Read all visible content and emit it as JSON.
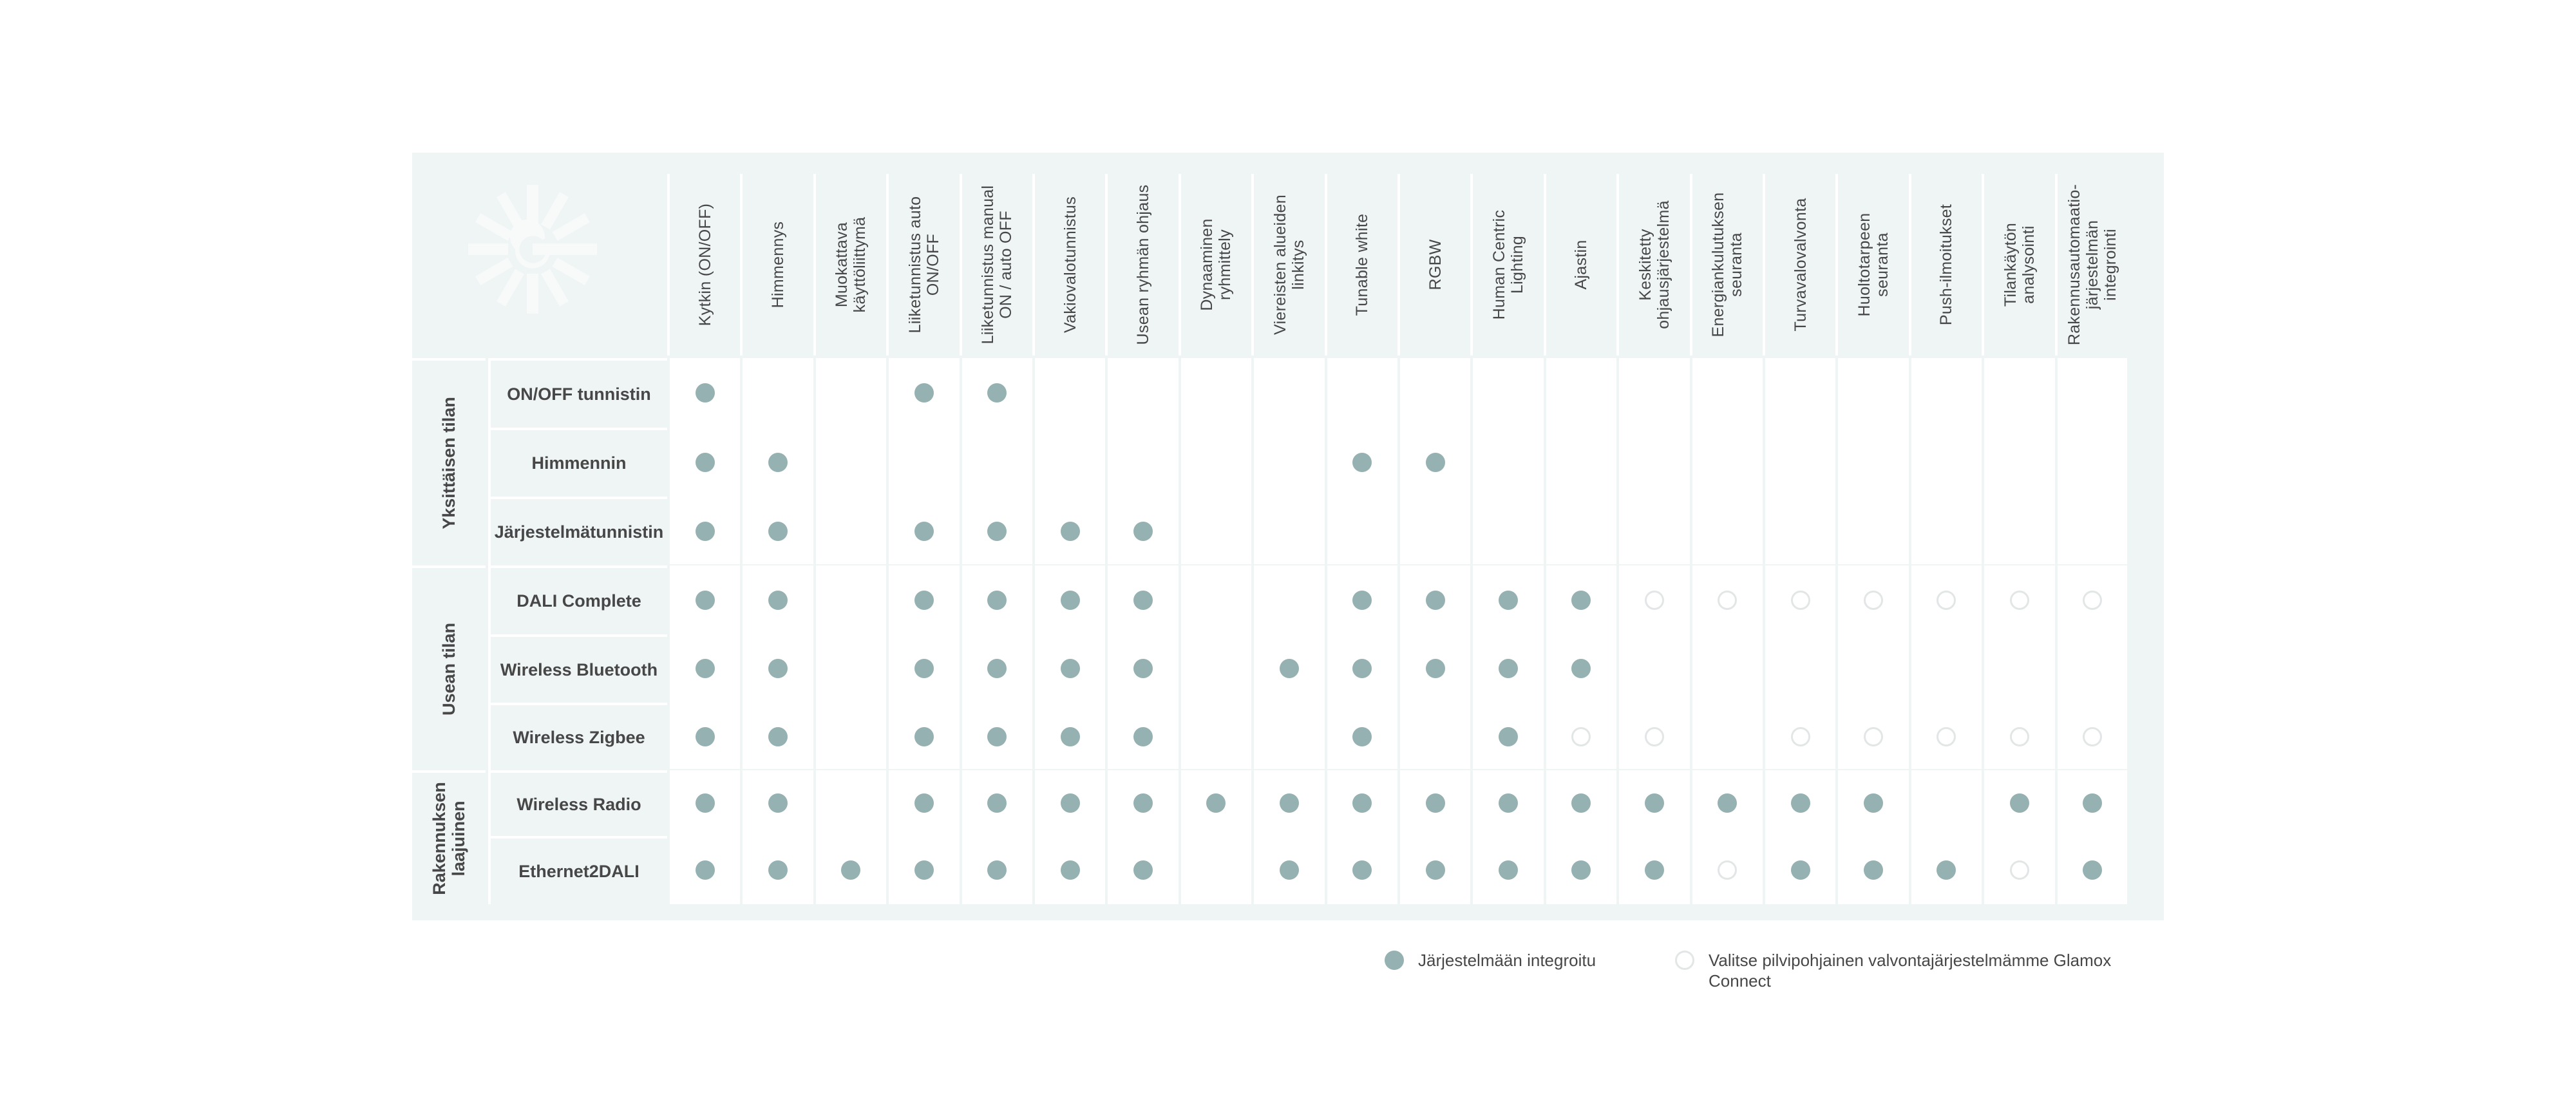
{
  "logo": {
    "icon": "glamox-starburst-g-icon"
  },
  "columns": [
    "Kytkin (ON/OFF)",
    "Himmennys",
    "Muokattava\nkäyttöliittymä",
    "Liiketunnistus auto\nON/OFF",
    "Liiketunnistus manual\nON / auto OFF",
    "Vakiovalotunnistus",
    "Usean ryhmän ohjaus",
    "Dynaaminen\nryhmittely",
    "Viereisten alueiden\nlinkitys",
    "Tunable white",
    "RGBW",
    "Human Centric\nLighting",
    "Ajastin",
    "Keskitetty\nohjausjärjestelmä",
    "Energiankulutuksen\nseuranta",
    "Turvavalovalvonta",
    "Huoltotarpeen\nseuranta",
    "Push-ilmoitukset",
    "Tilankäytön\nanalysointi",
    "Rakennusautomaatio-\njärjestelmän\nintegrointi"
  ],
  "groups": [
    {
      "label": "Yksittäisen tilan",
      "rows": [
        {
          "label": "ON/OFF tunnistin",
          "cells": "F--FF---------------"
        },
        {
          "label": "Himmennin",
          "cells": "FF-------FF---------"
        },
        {
          "label": "Järjestelmätunnistin",
          "cells": "FF-FFFF-------------"
        }
      ]
    },
    {
      "label": "Usean tilan",
      "rows": [
        {
          "label": "DALI Complete",
          "cells": "FF-FFFF--FFFFOOOOOOO"
        },
        {
          "label": "Wireless Bluetooth",
          "cells": "FF-FFFF-FFFFF-------"
        },
        {
          "label": "Wireless Zigbee",
          "cells": "FF-FFFF--F-FOO-OOOOO"
        }
      ]
    },
    {
      "label": "Rakennuksen\nlaajuinen",
      "rows": [
        {
          "label": "Wireless Radio",
          "cells": "FF-FFFFFFFFFFFFFF-FF"
        },
        {
          "label": "Ethernet2DALI",
          "cells": "FFFFFFF-FFFFFFOFFFOF"
        }
      ]
    }
  ],
  "legend": {
    "filled_label": "Järjestelmään integroitu",
    "hollow_label": "Valitse pilvipohjainen valvontajärjestelmämme Glamox Connect"
  },
  "colors": {
    "panel_bg": "#eff5f5",
    "dot_filled": "#95b1b1",
    "dot_hollow_border": "#e3e6e6",
    "text": "#474747"
  },
  "chart_data": {
    "type": "table",
    "title": "",
    "legend": {
      "F": "Järjestelmään integroitu",
      "O": "Valitse pilvipohjainen valvontajärjestelmämme Glamox Connect",
      "-": ""
    },
    "columns": [
      "Kytkin (ON/OFF)",
      "Himmennys",
      "Muokattava käyttöliittymä",
      "Liiketunnistus auto ON/OFF",
      "Liiketunnistus manual ON / auto OFF",
      "Vakiovalotunnistus",
      "Usean ryhmän ohjaus",
      "Dynaaminen ryhmittely",
      "Viereisten alueiden linkitys",
      "Tunable white",
      "RGBW",
      "Human Centric Lighting",
      "Ajastin",
      "Keskitetty ohjausjärjestelmä",
      "Energiankulutuksen seuranta",
      "Turvavalovalvonta",
      "Huoltotarpeen seuranta",
      "Push-ilmoitukset",
      "Tilankäytön analysointi",
      "Rakennusautomaatiojärjestelmän integrointi"
    ],
    "rows": [
      {
        "group": "Yksittäisen tilan",
        "label": "ON/OFF tunnistin",
        "values": [
          "F",
          "-",
          "-",
          "F",
          "F",
          "-",
          "-",
          "-",
          "-",
          "-",
          "-",
          "-",
          "-",
          "-",
          "-",
          "-",
          "-",
          "-",
          "-",
          "-"
        ]
      },
      {
        "group": "Yksittäisen tilan",
        "label": "Himmennin",
        "values": [
          "F",
          "F",
          "-",
          "-",
          "-",
          "-",
          "-",
          "-",
          "-",
          "F",
          "F",
          "-",
          "-",
          "-",
          "-",
          "-",
          "-",
          "-",
          "-",
          "-"
        ]
      },
      {
        "group": "Yksittäisen tilan",
        "label": "Järjestelmätunnistin",
        "values": [
          "F",
          "F",
          "-",
          "F",
          "F",
          "F",
          "F",
          "-",
          "-",
          "-",
          "-",
          "-",
          "-",
          "-",
          "-",
          "-",
          "-",
          "-",
          "-",
          "-"
        ]
      },
      {
        "group": "Usean tilan",
        "label": "DALI Complete",
        "values": [
          "F",
          "F",
          "-",
          "F",
          "F",
          "F",
          "F",
          "-",
          "-",
          "F",
          "F",
          "F",
          "F",
          "O",
          "O",
          "O",
          "O",
          "O",
          "O",
          "O"
        ]
      },
      {
        "group": "Usean tilan",
        "label": "Wireless Bluetooth",
        "values": [
          "F",
          "F",
          "-",
          "F",
          "F",
          "F",
          "F",
          "-",
          "F",
          "F",
          "F",
          "F",
          "F",
          "-",
          "-",
          "-",
          "-",
          "-",
          "-",
          "-"
        ]
      },
      {
        "group": "Usean tilan",
        "label": "Wireless Zigbee",
        "values": [
          "F",
          "F",
          "-",
          "F",
          "F",
          "F",
          "F",
          "-",
          "-",
          "F",
          "-",
          "F",
          "O",
          "O",
          "-",
          "O",
          "O",
          "O",
          "O",
          "O"
        ]
      },
      {
        "group": "Rakennuksen laajuinen",
        "label": "Wireless Radio",
        "values": [
          "F",
          "F",
          "-",
          "F",
          "F",
          "F",
          "F",
          "F",
          "F",
          "F",
          "F",
          "F",
          "F",
          "F",
          "F",
          "F",
          "F",
          "-",
          "F",
          "F"
        ]
      },
      {
        "group": "Rakennuksen laajuinen",
        "label": "Ethernet2DALI",
        "values": [
          "F",
          "F",
          "F",
          "F",
          "F",
          "F",
          "F",
          "-",
          "F",
          "F",
          "F",
          "F",
          "F",
          "F",
          "O",
          "F",
          "F",
          "F",
          "O",
          "F"
        ]
      }
    ]
  }
}
